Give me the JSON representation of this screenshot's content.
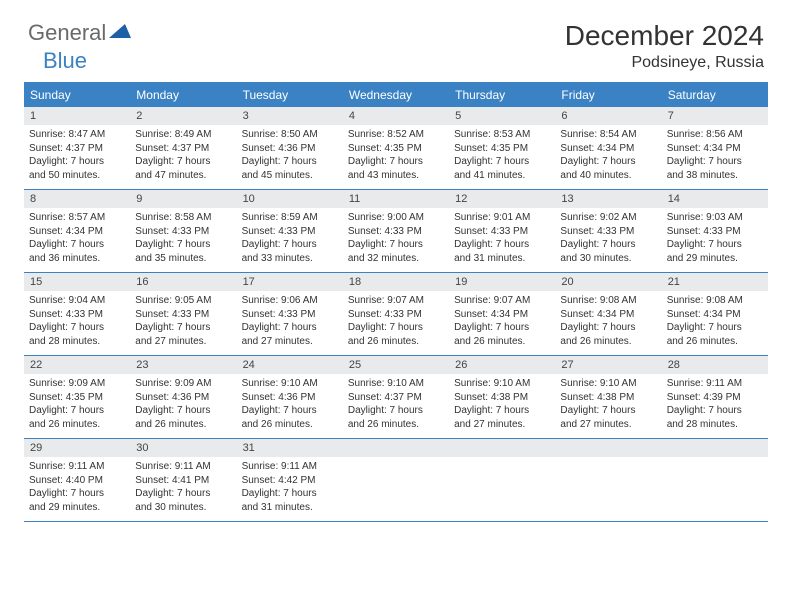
{
  "logo": {
    "text1": "General",
    "text2": "Blue"
  },
  "title": "December 2024",
  "location": "Podsineye, Russia",
  "colors": {
    "header_bg": "#3b82c4",
    "header_text": "#ffffff",
    "daynum_bg": "#e9eaeb",
    "text": "#333333",
    "border": "#3b82c4"
  },
  "weekdays": [
    "Sunday",
    "Monday",
    "Tuesday",
    "Wednesday",
    "Thursday",
    "Friday",
    "Saturday"
  ],
  "weeks": [
    [
      {
        "n": "1",
        "sr": "Sunrise: 8:47 AM",
        "ss": "Sunset: 4:37 PM",
        "d1": "Daylight: 7 hours",
        "d2": "and 50 minutes."
      },
      {
        "n": "2",
        "sr": "Sunrise: 8:49 AM",
        "ss": "Sunset: 4:37 PM",
        "d1": "Daylight: 7 hours",
        "d2": "and 47 minutes."
      },
      {
        "n": "3",
        "sr": "Sunrise: 8:50 AM",
        "ss": "Sunset: 4:36 PM",
        "d1": "Daylight: 7 hours",
        "d2": "and 45 minutes."
      },
      {
        "n": "4",
        "sr": "Sunrise: 8:52 AM",
        "ss": "Sunset: 4:35 PM",
        "d1": "Daylight: 7 hours",
        "d2": "and 43 minutes."
      },
      {
        "n": "5",
        "sr": "Sunrise: 8:53 AM",
        "ss": "Sunset: 4:35 PM",
        "d1": "Daylight: 7 hours",
        "d2": "and 41 minutes."
      },
      {
        "n": "6",
        "sr": "Sunrise: 8:54 AM",
        "ss": "Sunset: 4:34 PM",
        "d1": "Daylight: 7 hours",
        "d2": "and 40 minutes."
      },
      {
        "n": "7",
        "sr": "Sunrise: 8:56 AM",
        "ss": "Sunset: 4:34 PM",
        "d1": "Daylight: 7 hours",
        "d2": "and 38 minutes."
      }
    ],
    [
      {
        "n": "8",
        "sr": "Sunrise: 8:57 AM",
        "ss": "Sunset: 4:34 PM",
        "d1": "Daylight: 7 hours",
        "d2": "and 36 minutes."
      },
      {
        "n": "9",
        "sr": "Sunrise: 8:58 AM",
        "ss": "Sunset: 4:33 PM",
        "d1": "Daylight: 7 hours",
        "d2": "and 35 minutes."
      },
      {
        "n": "10",
        "sr": "Sunrise: 8:59 AM",
        "ss": "Sunset: 4:33 PM",
        "d1": "Daylight: 7 hours",
        "d2": "and 33 minutes."
      },
      {
        "n": "11",
        "sr": "Sunrise: 9:00 AM",
        "ss": "Sunset: 4:33 PM",
        "d1": "Daylight: 7 hours",
        "d2": "and 32 minutes."
      },
      {
        "n": "12",
        "sr": "Sunrise: 9:01 AM",
        "ss": "Sunset: 4:33 PM",
        "d1": "Daylight: 7 hours",
        "d2": "and 31 minutes."
      },
      {
        "n": "13",
        "sr": "Sunrise: 9:02 AM",
        "ss": "Sunset: 4:33 PM",
        "d1": "Daylight: 7 hours",
        "d2": "and 30 minutes."
      },
      {
        "n": "14",
        "sr": "Sunrise: 9:03 AM",
        "ss": "Sunset: 4:33 PM",
        "d1": "Daylight: 7 hours",
        "d2": "and 29 minutes."
      }
    ],
    [
      {
        "n": "15",
        "sr": "Sunrise: 9:04 AM",
        "ss": "Sunset: 4:33 PM",
        "d1": "Daylight: 7 hours",
        "d2": "and 28 minutes."
      },
      {
        "n": "16",
        "sr": "Sunrise: 9:05 AM",
        "ss": "Sunset: 4:33 PM",
        "d1": "Daylight: 7 hours",
        "d2": "and 27 minutes."
      },
      {
        "n": "17",
        "sr": "Sunrise: 9:06 AM",
        "ss": "Sunset: 4:33 PM",
        "d1": "Daylight: 7 hours",
        "d2": "and 27 minutes."
      },
      {
        "n": "18",
        "sr": "Sunrise: 9:07 AM",
        "ss": "Sunset: 4:33 PM",
        "d1": "Daylight: 7 hours",
        "d2": "and 26 minutes."
      },
      {
        "n": "19",
        "sr": "Sunrise: 9:07 AM",
        "ss": "Sunset: 4:34 PM",
        "d1": "Daylight: 7 hours",
        "d2": "and 26 minutes."
      },
      {
        "n": "20",
        "sr": "Sunrise: 9:08 AM",
        "ss": "Sunset: 4:34 PM",
        "d1": "Daylight: 7 hours",
        "d2": "and 26 minutes."
      },
      {
        "n": "21",
        "sr": "Sunrise: 9:08 AM",
        "ss": "Sunset: 4:34 PM",
        "d1": "Daylight: 7 hours",
        "d2": "and 26 minutes."
      }
    ],
    [
      {
        "n": "22",
        "sr": "Sunrise: 9:09 AM",
        "ss": "Sunset: 4:35 PM",
        "d1": "Daylight: 7 hours",
        "d2": "and 26 minutes."
      },
      {
        "n": "23",
        "sr": "Sunrise: 9:09 AM",
        "ss": "Sunset: 4:36 PM",
        "d1": "Daylight: 7 hours",
        "d2": "and 26 minutes."
      },
      {
        "n": "24",
        "sr": "Sunrise: 9:10 AM",
        "ss": "Sunset: 4:36 PM",
        "d1": "Daylight: 7 hours",
        "d2": "and 26 minutes."
      },
      {
        "n": "25",
        "sr": "Sunrise: 9:10 AM",
        "ss": "Sunset: 4:37 PM",
        "d1": "Daylight: 7 hours",
        "d2": "and 26 minutes."
      },
      {
        "n": "26",
        "sr": "Sunrise: 9:10 AM",
        "ss": "Sunset: 4:38 PM",
        "d1": "Daylight: 7 hours",
        "d2": "and 27 minutes."
      },
      {
        "n": "27",
        "sr": "Sunrise: 9:10 AM",
        "ss": "Sunset: 4:38 PM",
        "d1": "Daylight: 7 hours",
        "d2": "and 27 minutes."
      },
      {
        "n": "28",
        "sr": "Sunrise: 9:11 AM",
        "ss": "Sunset: 4:39 PM",
        "d1": "Daylight: 7 hours",
        "d2": "and 28 minutes."
      }
    ],
    [
      {
        "n": "29",
        "sr": "Sunrise: 9:11 AM",
        "ss": "Sunset: 4:40 PM",
        "d1": "Daylight: 7 hours",
        "d2": "and 29 minutes."
      },
      {
        "n": "30",
        "sr": "Sunrise: 9:11 AM",
        "ss": "Sunset: 4:41 PM",
        "d1": "Daylight: 7 hours",
        "d2": "and 30 minutes."
      },
      {
        "n": "31",
        "sr": "Sunrise: 9:11 AM",
        "ss": "Sunset: 4:42 PM",
        "d1": "Daylight: 7 hours",
        "d2": "and 31 minutes."
      },
      {
        "n": "",
        "sr": "",
        "ss": "",
        "d1": "",
        "d2": "",
        "empty": true
      },
      {
        "n": "",
        "sr": "",
        "ss": "",
        "d1": "",
        "d2": "",
        "empty": true
      },
      {
        "n": "",
        "sr": "",
        "ss": "",
        "d1": "",
        "d2": "",
        "empty": true
      },
      {
        "n": "",
        "sr": "",
        "ss": "",
        "d1": "",
        "d2": "",
        "empty": true
      }
    ]
  ]
}
